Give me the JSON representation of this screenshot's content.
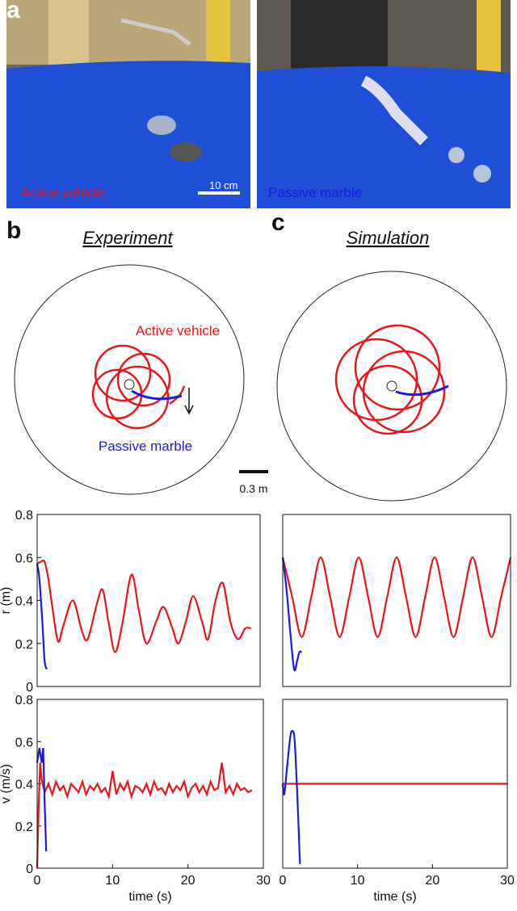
{
  "panels": {
    "a": "a",
    "b": "b",
    "c": "c",
    "photo_left_label": "Active vehicle",
    "photo_scale": "10 cm",
    "photo_right_label": "Passive marble",
    "experiment_title": "Experiment",
    "simulation_title": "Simulation",
    "traj_active": "Active vehicle",
    "traj_passive": "Passive marble",
    "traj_scale": "0.3 m"
  },
  "chart_data": [
    {
      "type": "line",
      "smooth": true,
      "ylabel": "r (m)",
      "xlim": [
        0,
        30
      ],
      "ylim": [
        0,
        0.8
      ],
      "yticks": [
        0,
        0.2,
        0.4,
        0.6,
        0.8
      ],
      "series": [
        {
          "color": "#e8161b",
          "x": [
            0,
            0.5,
            1,
            1.5,
            2,
            2.8,
            3.5,
            4.8,
            6,
            6.8,
            8,
            8.8,
            9.6,
            10.5,
            11.5,
            12.7,
            13.7,
            14.7,
            16,
            17,
            18.2,
            19,
            20,
            21,
            22.2,
            23,
            24,
            25,
            26,
            27,
            28,
            28.8
          ],
          "values": [
            0.57,
            0.58,
            0.58,
            0.5,
            0.38,
            0.21,
            0.28,
            0.4,
            0.26,
            0.22,
            0.38,
            0.45,
            0.3,
            0.16,
            0.3,
            0.52,
            0.35,
            0.2,
            0.3,
            0.37,
            0.27,
            0.2,
            0.3,
            0.42,
            0.3,
            0.22,
            0.4,
            0.48,
            0.3,
            0.22,
            0.27,
            0.27
          ]
        },
        {
          "color": "#1a1ae0",
          "x": [
            0,
            0.3,
            0.7,
            1,
            1.3
          ],
          "values": [
            0.57,
            0.5,
            0.3,
            0.12,
            0.08
          ]
        }
      ]
    },
    {
      "type": "line",
      "smooth": true,
      "xlim": [
        0,
        30
      ],
      "ylim": [
        0,
        0.8
      ],
      "series": [
        {
          "color": "#e8161b",
          "x": [
            0,
            1.25,
            2.5,
            3.75,
            5,
            6.25,
            7.5,
            8.75,
            10,
            11.25,
            12.5,
            13.75,
            15,
            16.25,
            17.5,
            18.75,
            20,
            21.25,
            22.5,
            23.75,
            25,
            26.25,
            27.5,
            28.75,
            30
          ],
          "values": [
            0.6,
            0.415,
            0.23,
            0.415,
            0.6,
            0.415,
            0.23,
            0.415,
            0.6,
            0.415,
            0.23,
            0.415,
            0.6,
            0.415,
            0.23,
            0.415,
            0.6,
            0.415,
            0.23,
            0.415,
            0.6,
            0.415,
            0.23,
            0.415,
            0.6
          ]
        },
        {
          "color": "#1a1ae0",
          "x": [
            0,
            0.5,
            1,
            1.5,
            1.9,
            2.2,
            2.5
          ],
          "values": [
            0.6,
            0.45,
            0.25,
            0.08,
            0.12,
            0.16,
            0.16
          ]
        }
      ]
    },
    {
      "type": "line",
      "smooth": false,
      "ylabel": "v (m/s)",
      "xlabel": "time (s)",
      "xlim": [
        0,
        30
      ],
      "ylim": [
        0,
        0.8
      ],
      "xticks": [
        0,
        10,
        20,
        30
      ],
      "yticks": [
        0,
        0.2,
        0.4,
        0.6,
        0.8
      ],
      "series": [
        {
          "color": "#e8161b",
          "x": [
            0,
            0.2,
            0.4,
            0.6,
            1,
            1.5,
            2,
            2.5,
            3,
            3.5,
            4,
            4.5,
            5,
            5.5,
            6,
            6.5,
            7,
            7.5,
            8,
            8.5,
            9,
            9.5,
            10,
            10.5,
            11,
            11.5,
            12,
            12.5,
            13,
            13.5,
            14,
            14.5,
            15,
            15.5,
            16,
            16.5,
            17,
            17.5,
            18,
            18.5,
            19,
            19.5,
            20,
            20.5,
            21,
            21.5,
            22,
            22.5,
            23,
            23.5,
            24,
            24.5,
            25,
            25.5,
            26,
            26.5,
            27,
            27.5,
            28,
            28.5
          ],
          "values": [
            0,
            0.3,
            0.5,
            0.42,
            0.36,
            0.4,
            0.35,
            0.41,
            0.37,
            0.39,
            0.34,
            0.4,
            0.38,
            0.36,
            0.41,
            0.35,
            0.39,
            0.37,
            0.4,
            0.36,
            0.38,
            0.34,
            0.46,
            0.35,
            0.4,
            0.37,
            0.41,
            0.34,
            0.39,
            0.38,
            0.36,
            0.4,
            0.35,
            0.41,
            0.37,
            0.38,
            0.35,
            0.4,
            0.36,
            0.39,
            0.37,
            0.41,
            0.34,
            0.38,
            0.4,
            0.36,
            0.39,
            0.35,
            0.41,
            0.37,
            0.38,
            0.5,
            0.36,
            0.39,
            0.35,
            0.4,
            0.37,
            0.38,
            0.36,
            0.37
          ]
        },
        {
          "color": "#1a1ae0",
          "x": [
            0,
            0.3,
            0.6,
            0.8,
            1,
            1.2
          ],
          "values": [
            0.5,
            0.57,
            0.5,
            0.57,
            0.3,
            0.08
          ]
        }
      ]
    },
    {
      "type": "line",
      "smooth": true,
      "xlabel": "time (s)",
      "xlim": [
        0,
        30
      ],
      "ylim": [
        0,
        0.8
      ],
      "xticks": [
        0,
        10,
        20,
        30
      ],
      "series": [
        {
          "color": "#e8161b",
          "x": [
            0,
            30
          ],
          "values": [
            0.4,
            0.4
          ]
        },
        {
          "color": "#1a1ae0",
          "x": [
            0,
            0.2,
            0.5,
            1,
            1.3,
            1.6,
            2,
            2.3
          ],
          "values": [
            0.4,
            0.35,
            0.45,
            0.62,
            0.65,
            0.6,
            0.3,
            0.02
          ]
        }
      ]
    }
  ]
}
